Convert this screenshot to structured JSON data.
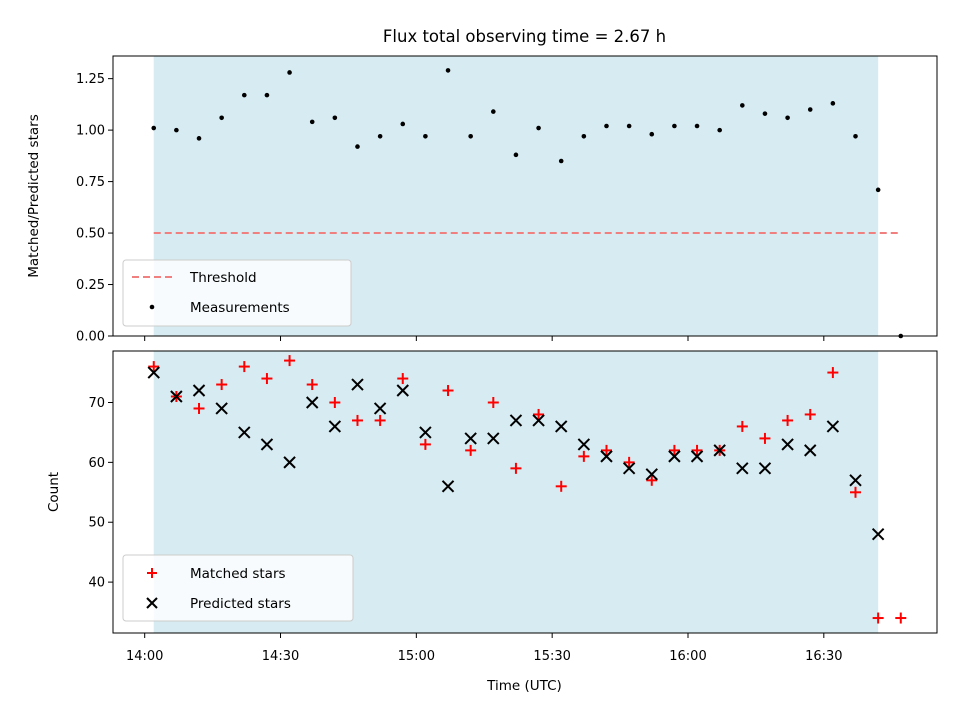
{
  "chart_data": [
    {
      "type": "scatter",
      "title": "Flux total observing time = 2.67 h",
      "ylabel": "Matched/Predicted stars",
      "ylim": [
        0,
        1.36
      ],
      "yticks": [
        "0.00",
        "0.25",
        "0.50",
        "0.75",
        "1.00",
        "1.25"
      ],
      "ytick_values": [
        0,
        0.25,
        0.5,
        0.75,
        1.0,
        1.25
      ],
      "shaded_span": [
        "14:02",
        "16:42"
      ],
      "shade_color": "#add8e6",
      "threshold": {
        "name": "Threshold",
        "value": 0.5,
        "x_range": [
          "14:02",
          "16:47"
        ],
        "color": "#f08080"
      },
      "series": [
        {
          "name": "Measurements",
          "color": "#000000",
          "x": [
            "14:02",
            "14:07",
            "14:12",
            "14:17",
            "14:22",
            "14:27",
            "14:32",
            "14:37",
            "14:42",
            "14:47",
            "14:52",
            "14:57",
            "15:02",
            "15:07",
            "15:12",
            "15:17",
            "15:22",
            "15:27",
            "15:32",
            "15:37",
            "15:42",
            "15:47",
            "15:52",
            "15:57",
            "16:02",
            "16:07",
            "16:12",
            "16:17",
            "16:22",
            "16:27",
            "16:32",
            "16:37",
            "16:42",
            "16:47"
          ],
          "y": [
            1.01,
            1.0,
            0.96,
            1.06,
            1.17,
            1.17,
            1.28,
            1.04,
            1.06,
            0.92,
            0.97,
            1.03,
            0.97,
            1.29,
            0.97,
            1.09,
            0.88,
            1.01,
            0.85,
            0.97,
            1.02,
            1.02,
            0.98,
            1.02,
            1.02,
            1.0,
            1.12,
            1.08,
            1.06,
            1.1,
            1.13,
            0.97,
            0.71,
            0.0
          ]
        }
      ],
      "legend": {
        "placement": "lower-left",
        "entries": [
          "Threshold",
          "Measurements"
        ]
      }
    },
    {
      "type": "scatter",
      "xlabel": "Time (UTC)",
      "ylabel": "Count",
      "ylim": [
        31.5,
        78.6
      ],
      "yticks": [
        "40",
        "50",
        "60",
        "70"
      ],
      "ytick_values": [
        40,
        50,
        60,
        70
      ],
      "xticks": [
        "14:00",
        "14:30",
        "15:00",
        "15:30",
        "16:00",
        "16:30"
      ],
      "xtick_values": [
        "14:00",
        "14:30",
        "15:00",
        "15:30",
        "16:00",
        "16:30"
      ],
      "xlim": [
        "13:53",
        "16:55"
      ],
      "shaded_span": [
        "14:02",
        "16:42"
      ],
      "shade_color": "#add8e6",
      "series": [
        {
          "name": "Matched stars",
          "marker": "+",
          "color": "#ff0000",
          "x": [
            "14:02",
            "14:07",
            "14:12",
            "14:17",
            "14:22",
            "14:27",
            "14:32",
            "14:37",
            "14:42",
            "14:47",
            "14:52",
            "14:57",
            "15:02",
            "15:07",
            "15:12",
            "15:17",
            "15:22",
            "15:27",
            "15:32",
            "15:37",
            "15:42",
            "15:47",
            "15:52",
            "15:57",
            "16:02",
            "16:07",
            "16:12",
            "16:17",
            "16:22",
            "16:27",
            "16:32",
            "16:37",
            "16:42",
            "16:47"
          ],
          "y": [
            76,
            71,
            69,
            73,
            76,
            74,
            77,
            73,
            70,
            67,
            67,
            74,
            63,
            72,
            62,
            70,
            59,
            68,
            56,
            61,
            62,
            60,
            57,
            62,
            62,
            62,
            66,
            64,
            67,
            68,
            75,
            55,
            34,
            34
          ]
        },
        {
          "name": "Predicted stars",
          "marker": "x",
          "color": "#000000",
          "x": [
            "14:02",
            "14:07",
            "14:12",
            "14:17",
            "14:22",
            "14:27",
            "14:32",
            "14:37",
            "14:42",
            "14:47",
            "14:52",
            "14:57",
            "15:02",
            "15:07",
            "15:12",
            "15:17",
            "15:22",
            "15:27",
            "15:32",
            "15:37",
            "15:42",
            "15:47",
            "15:52",
            "15:57",
            "16:02",
            "16:07",
            "16:12",
            "16:17",
            "16:22",
            "16:27",
            "16:32",
            "16:37",
            "16:42"
          ],
          "y": [
            75,
            71,
            72,
            69,
            65,
            63,
            60,
            70,
            66,
            73,
            69,
            72,
            65,
            56,
            64,
            64,
            67,
            67,
            66,
            63,
            61,
            59,
            58,
            61,
            61,
            62,
            59,
            59,
            63,
            62,
            66,
            57,
            48
          ]
        }
      ],
      "legend": {
        "placement": "lower-left",
        "entries": [
          "Matched stars",
          "Predicted stars"
        ]
      }
    }
  ]
}
